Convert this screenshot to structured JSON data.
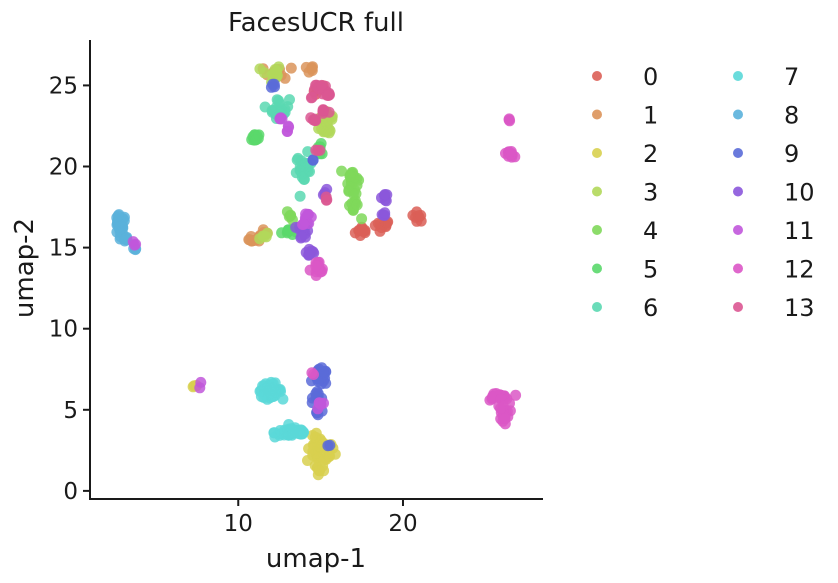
{
  "chart_data": {
    "type": "scatter",
    "title": "FacesUCR full",
    "xlabel": "umap-1",
    "ylabel": "umap-2",
    "xlim": [
      1,
      28.5
    ],
    "ylim": [
      -0.5,
      27.8
    ],
    "xticks": [
      10,
      20
    ],
    "yticks": [
      0,
      5,
      10,
      15,
      20,
      25
    ],
    "grid": false,
    "legend": {
      "placement": "right",
      "columns": 2
    },
    "series": [
      {
        "name": "0",
        "color": "#db5f57",
        "clusters": [
          [
            17.6,
            16.0,
            0.4,
            0.3,
            10
          ],
          [
            18.7,
            16.4,
            0.5,
            0.25,
            10
          ],
          [
            20.9,
            16.9,
            0.3,
            0.25,
            8
          ],
          [
            15.0,
            24.7,
            0.4,
            0.3,
            6
          ]
        ]
      },
      {
        "name": "1",
        "color": "#db945a",
        "clusters": [
          [
            11.0,
            15.5,
            0.3,
            0.2,
            10
          ],
          [
            12.5,
            25.8,
            0.8,
            0.3,
            12
          ],
          [
            14.3,
            26.0,
            0.4,
            0.2,
            6
          ],
          [
            11.5,
            15.9,
            0.3,
            0.2,
            5
          ]
        ]
      },
      {
        "name": "2",
        "color": "#d8d04f",
        "clusters": [
          [
            15.0,
            2.5,
            0.7,
            0.7,
            40
          ],
          [
            14.9,
            1.3,
            0.25,
            0.4,
            8
          ],
          [
            7.4,
            6.5,
            0.15,
            0.1,
            4
          ]
        ]
      },
      {
        "name": "3",
        "color": "#b1d85a",
        "clusters": [
          [
            12.0,
            25.7,
            0.5,
            0.5,
            14
          ],
          [
            15.4,
            22.8,
            0.4,
            0.9,
            30
          ],
          [
            11.5,
            15.7,
            0.3,
            0.2,
            5
          ]
        ]
      },
      {
        "name": "4",
        "color": "#7fd85a",
        "clusters": [
          [
            16.9,
            19.3,
            0.3,
            0.6,
            22
          ],
          [
            17.0,
            17.5,
            0.3,
            0.6,
            12
          ],
          [
            13.2,
            17.0,
            0.2,
            0.3,
            5
          ]
        ]
      },
      {
        "name": "5",
        "color": "#5ad86b",
        "clusters": [
          [
            11.0,
            21.8,
            0.2,
            0.3,
            12
          ],
          [
            13.0,
            16.0,
            0.3,
            0.2,
            8
          ],
          [
            15.0,
            21.0,
            0.3,
            0.4,
            8
          ]
        ]
      },
      {
        "name": "6",
        "color": "#5ad8b1",
        "clusters": [
          [
            12.5,
            23.6,
            0.5,
            0.5,
            22
          ],
          [
            14.0,
            19.8,
            0.4,
            0.8,
            25
          ]
        ]
      },
      {
        "name": "7",
        "color": "#5ad8d8",
        "clusters": [
          [
            11.9,
            6.2,
            0.6,
            0.35,
            40
          ],
          [
            13.3,
            3.6,
            0.9,
            0.25,
            50
          ]
        ]
      },
      {
        "name": "8",
        "color": "#5ab1db",
        "clusters": [
          [
            2.8,
            16.4,
            0.3,
            0.5,
            30
          ],
          [
            3.1,
            15.5,
            0.3,
            0.2,
            8
          ],
          [
            3.7,
            14.9,
            0.1,
            0.1,
            3
          ]
        ]
      },
      {
        "name": "9",
        "color": "#5a6bd8",
        "clusters": [
          [
            15.0,
            7.0,
            0.35,
            0.4,
            25
          ],
          [
            14.9,
            5.9,
            0.3,
            0.3,
            8
          ],
          [
            14.8,
            4.8,
            0.2,
            0.3,
            6
          ],
          [
            15.5,
            2.8,
            0.1,
            0.1,
            2
          ],
          [
            12.2,
            25.0,
            0.2,
            0.2,
            4
          ],
          [
            14.6,
            20.4,
            0.1,
            0.1,
            2
          ]
        ]
      },
      {
        "name": "10",
        "color": "#8b57db",
        "clusters": [
          [
            14.0,
            16.0,
            0.3,
            0.4,
            12
          ],
          [
            14.3,
            14.8,
            0.3,
            0.3,
            8
          ],
          [
            18.9,
            18.1,
            0.15,
            0.2,
            6
          ],
          [
            18.9,
            17.1,
            0.15,
            0.15,
            4
          ],
          [
            15.3,
            18.3,
            0.2,
            0.2,
            4
          ]
        ]
      },
      {
        "name": "11",
        "color": "#c157db",
        "clusters": [
          [
            14.2,
            16.8,
            0.3,
            0.3,
            10
          ],
          [
            15.0,
            5.3,
            0.2,
            0.3,
            6
          ],
          [
            12.5,
            23.0,
            0.2,
            0.2,
            4
          ],
          [
            13.0,
            22.3,
            0.2,
            0.2,
            4
          ],
          [
            3.7,
            15.3,
            0.1,
            0.1,
            3
          ],
          [
            7.7,
            6.6,
            0.1,
            0.1,
            2
          ]
        ]
      },
      {
        "name": "12",
        "color": "#db57c6",
        "clusters": [
          [
            26.5,
            20.8,
            0.2,
            0.2,
            12
          ],
          [
            26.5,
            22.8,
            0.1,
            0.1,
            3
          ],
          [
            25.7,
            5.8,
            0.6,
            0.2,
            20
          ],
          [
            26.1,
            4.8,
            0.3,
            0.5,
            20
          ],
          [
            14.8,
            13.6,
            0.35,
            0.5,
            16
          ],
          [
            14.5,
            7.2,
            0.1,
            0.1,
            2
          ]
        ]
      },
      {
        "name": "13",
        "color": "#db5792",
        "clusters": [
          [
            15.0,
            24.8,
            0.3,
            0.3,
            10
          ],
          [
            15.5,
            24.4,
            0.2,
            0.2,
            6
          ],
          [
            15.2,
            23.4,
            0.3,
            0.2,
            6
          ],
          [
            14.6,
            22.9,
            0.3,
            0.2,
            5
          ],
          [
            14.8,
            21.0,
            0.15,
            0.15,
            3
          ],
          [
            15.3,
            18.0,
            0.15,
            0.15,
            3
          ],
          [
            14.5,
            24.2,
            0.1,
            0.1,
            2
          ]
        ]
      }
    ]
  }
}
